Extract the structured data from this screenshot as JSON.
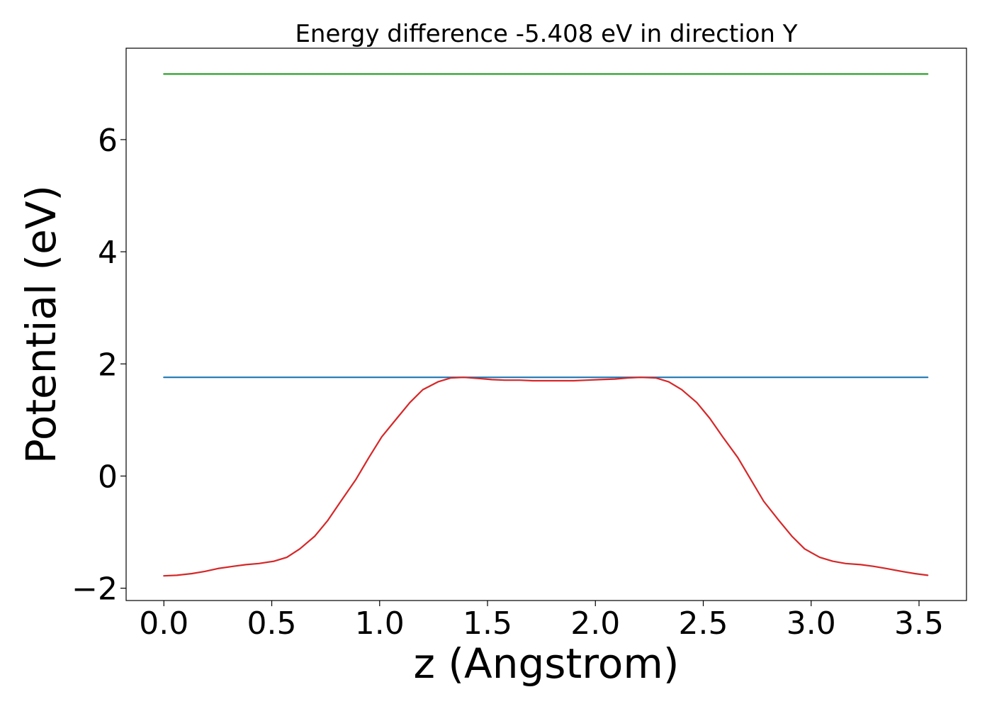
{
  "chart_data": {
    "type": "line",
    "title": "Energy difference -5.408 eV in direction Y",
    "xlabel": "z (Angstrom)",
    "ylabel": "Potential (eV)",
    "xlim": [
      -0.175,
      3.72
    ],
    "ylim": [
      -2.22,
      7.63
    ],
    "xticks": [
      0.0,
      0.5,
      1.0,
      1.5,
      2.0,
      2.5,
      3.0,
      3.5
    ],
    "xtick_labels": [
      "0.0",
      "0.5",
      "1.0",
      "1.5",
      "2.0",
      "2.5",
      "3.0",
      "3.5"
    ],
    "yticks": [
      -2,
      0,
      2,
      4,
      6
    ],
    "ytick_labels": [
      "−2",
      "0",
      "2",
      "4",
      "6"
    ],
    "grid": false,
    "series": [
      {
        "color": "#2ca02c",
        "x": [
          0.0,
          3.54
        ],
        "y": [
          7.17,
          7.17
        ]
      },
      {
        "color": "#1f77b4",
        "x": [
          0.0,
          3.54
        ],
        "y": [
          1.76,
          1.76
        ]
      },
      {
        "color": "#d62728",
        "x": [
          0.0,
          0.06,
          0.13,
          0.19,
          0.25,
          0.32,
          0.38,
          0.44,
          0.51,
          0.57,
          0.63,
          0.7,
          0.76,
          0.82,
          0.89,
          0.95,
          1.01,
          1.08,
          1.14,
          1.2,
          1.27,
          1.33,
          1.39,
          1.46,
          1.52,
          1.58,
          1.65,
          1.71,
          1.77,
          1.83,
          1.9,
          1.96,
          2.02,
          2.09,
          2.15,
          2.21,
          2.28,
          2.34,
          2.4,
          2.47,
          2.53,
          2.59,
          2.66,
          2.72,
          2.78,
          2.85,
          2.91,
          2.97,
          3.04,
          3.1,
          3.16,
          3.23,
          3.29,
          3.35,
          3.42,
          3.48,
          3.54
        ],
        "y": [
          -1.78,
          -1.77,
          -1.74,
          -1.7,
          -1.65,
          -1.61,
          -1.58,
          -1.56,
          -1.52,
          -1.45,
          -1.3,
          -1.07,
          -0.79,
          -0.45,
          -0.06,
          0.33,
          0.7,
          1.03,
          1.31,
          1.54,
          1.68,
          1.75,
          1.76,
          1.74,
          1.72,
          1.71,
          1.71,
          1.7,
          1.7,
          1.7,
          1.7,
          1.71,
          1.72,
          1.73,
          1.75,
          1.76,
          1.75,
          1.68,
          1.54,
          1.31,
          1.03,
          0.7,
          0.33,
          -0.06,
          -0.45,
          -0.79,
          -1.07,
          -1.3,
          -1.45,
          -1.52,
          -1.56,
          -1.58,
          -1.61,
          -1.65,
          -1.7,
          -1.74,
          -1.77
        ]
      }
    ]
  }
}
